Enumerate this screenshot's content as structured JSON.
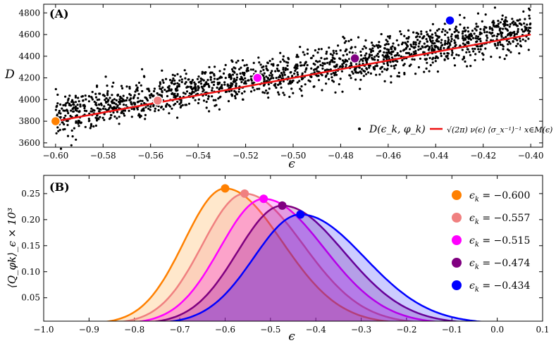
{
  "chart_data": [
    {
      "panel": "(A)",
      "type": "scatter",
      "xlabel": "ϵ",
      "ylabel": "D",
      "xlim": [
        -0.605,
        -0.395
      ],
      "ylim": [
        3560,
        4880
      ],
      "xticks": [
        -0.6,
        -0.58,
        -0.56,
        -0.54,
        -0.52,
        -0.5,
        -0.48,
        -0.46,
        -0.44,
        -0.42,
        -0.4
      ],
      "xtick_labels": [
        "−0.60",
        "−0.58",
        "−0.56",
        "−0.54",
        "−0.52",
        "−0.50",
        "−0.48",
        "−0.46",
        "−0.44",
        "−0.42",
        "−0.40"
      ],
      "yticks": [
        3600,
        3800,
        4000,
        4200,
        4400,
        4600,
        4800
      ],
      "ytick_labels": [
        "3600",
        "3800",
        "4000",
        "4200",
        "4400",
        "4600",
        "4800"
      ],
      "scatter_series": {
        "name": "D(ϵk, φk)",
        "legend_label": "D(ϵ_k, φ_k)",
        "color": "#000000",
        "x_range": [
          -0.6,
          -0.4
        ],
        "trend": {
          "slope": 4000,
          "intercept": 6200
        },
        "scatter_sd": 90,
        "count": 1800
      },
      "fit_line": {
        "legend_label": "√(2π) ν(ϵ) ⟨σ_x⁻¹⟩⁻¹ x∈M(ϵ)",
        "color": "#ee1111",
        "x": [
          -0.6,
          -0.4
        ],
        "y": [
          3800,
          4600
        ]
      },
      "highlighted_points": [
        {
          "x": -0.6,
          "y": 3800,
          "color": "#ff8000"
        },
        {
          "x": -0.557,
          "y": 3990,
          "color": "#f08080"
        },
        {
          "x": -0.515,
          "y": 4200,
          "color": "#ff00ff"
        },
        {
          "x": -0.474,
          "y": 4380,
          "color": "#800080"
        },
        {
          "x": -0.434,
          "y": 4730,
          "color": "#0000ff"
        }
      ]
    },
    {
      "panel": "(B)",
      "type": "area",
      "xlabel": "ϵ",
      "ylabel": "⟨Q_φk⟩_ϵ × 10³",
      "xlim": [
        -1.0,
        0.1
      ],
      "ylim": [
        0.005,
        0.285
      ],
      "xticks": [
        -1.0,
        -0.9,
        -0.8,
        -0.7,
        -0.6,
        -0.5,
        -0.4,
        -0.3,
        -0.2,
        -0.1,
        0.0,
        0.1
      ],
      "xtick_labels": [
        "−1.0",
        "−0.9",
        "−0.8",
        "−0.7",
        "−0.6",
        "−0.5",
        "−0.4",
        "−0.3",
        "−0.2",
        "−0.1",
        "0.0",
        "0.1"
      ],
      "yticks": [
        0.05,
        0.1,
        0.15,
        0.2,
        0.25
      ],
      "ytick_labels": [
        "0.05",
        "0.10",
        "0.15",
        "0.20",
        "0.25"
      ],
      "series": [
        {
          "name": "ϵk = −0.600",
          "epsilon": "−0.600",
          "peak_x": -0.6,
          "peak_y": 0.26,
          "width_left": 0.128,
          "width_right": 0.178,
          "color": "#ff8000",
          "fill": "rgba(255,140,0,0.20)"
        },
        {
          "name": "ϵk = −0.557",
          "epsilon": "−0.557",
          "peak_x": -0.557,
          "peak_y": 0.25,
          "width_left": 0.132,
          "width_right": 0.183,
          "color": "#f08080",
          "fill": "rgba(240,128,128,0.22)"
        },
        {
          "name": "ϵk = −0.515",
          "epsilon": "−0.515",
          "peak_x": -0.515,
          "peak_y": 0.24,
          "width_left": 0.136,
          "width_right": 0.188,
          "color": "#ff00ff",
          "fill": "rgba(255,0,255,0.22)"
        },
        {
          "name": "ϵk = −0.474",
          "epsilon": "−0.474",
          "peak_x": -0.474,
          "peak_y": 0.227,
          "width_left": 0.14,
          "width_right": 0.193,
          "color": "#800080",
          "fill": "rgba(128,0,128,0.22)"
        },
        {
          "name": "ϵk = −0.434",
          "epsilon": "−0.434",
          "peak_x": -0.434,
          "peak_y": 0.21,
          "width_left": 0.145,
          "width_right": 0.2,
          "color": "#0000ff",
          "fill": "rgba(0,0,255,0.20)"
        }
      ]
    }
  ]
}
